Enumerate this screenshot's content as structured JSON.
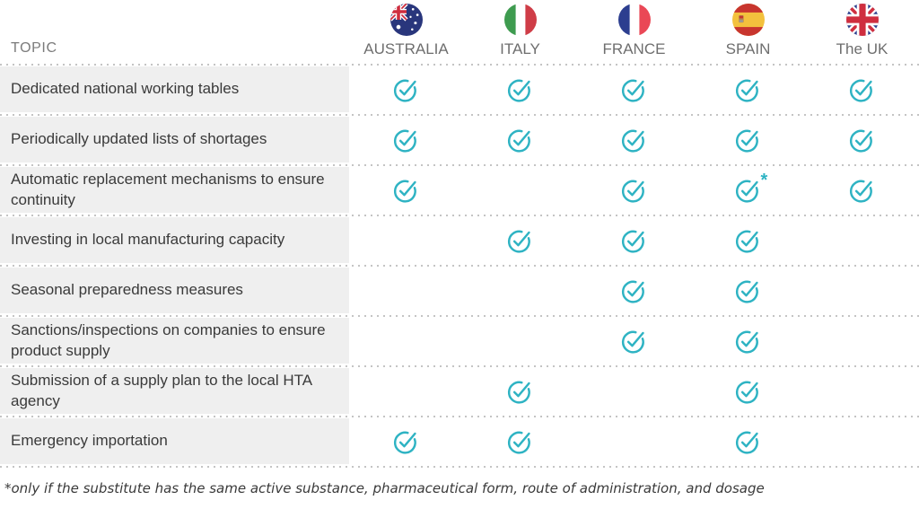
{
  "header": {
    "topic_label": "TOPIC",
    "countries": [
      {
        "name": "AUSTRALIA",
        "flag_icon": "australia-flag-icon"
      },
      {
        "name": "ITALY",
        "flag_icon": "italy-flag-icon"
      },
      {
        "name": "FRANCE",
        "flag_icon": "france-flag-icon"
      },
      {
        "name": "SPAIN",
        "flag_icon": "spain-flag-icon"
      },
      {
        "name": "The UK",
        "flag_icon": "uk-flag-icon"
      }
    ]
  },
  "rows": [
    {
      "topic": "Dedicated national working tables",
      "checks": [
        "yes",
        "yes",
        "yes",
        "yes",
        "yes"
      ]
    },
    {
      "topic": "Periodically updated lists of shortages",
      "checks": [
        "yes",
        "yes",
        "yes",
        "yes",
        "yes"
      ]
    },
    {
      "topic": "Automatic replacement mechanisms to ensure continuity",
      "checks": [
        "yes",
        "no",
        "yes",
        "yes*",
        "yes"
      ]
    },
    {
      "topic": "Investing in local manufacturing capacity",
      "checks": [
        "no",
        "yes",
        "yes",
        "yes",
        "no"
      ]
    },
    {
      "topic": "Seasonal preparedness measures",
      "checks": [
        "no",
        "no",
        "yes",
        "yes",
        "no"
      ]
    },
    {
      "topic": "Sanctions/inspections on companies to ensure product supply",
      "checks": [
        "no",
        "no",
        "yes",
        "yes",
        "no"
      ]
    },
    {
      "topic": "Submission of a supply plan to the local HTA agency",
      "checks": [
        "no",
        "yes",
        "no",
        "yes",
        "no"
      ]
    },
    {
      "topic": "Emergency importation",
      "checks": [
        "yes",
        "yes",
        "no",
        "yes",
        "no"
      ]
    }
  ],
  "footnote": "*only if the substitute has the same active substance, pharmaceutical form, route of administration, and dosage",
  "colors": {
    "check": "#2eb3c3",
    "topic_column_bg": "#efefef",
    "dotted_line": "#c4c4c4",
    "header_text": "#7b7b7b",
    "row_text": "#3a3a3a"
  },
  "chart_data": {
    "type": "table",
    "columns": [
      "TOPIC",
      "AUSTRALIA",
      "ITALY",
      "FRANCE",
      "SPAIN",
      "The UK"
    ],
    "rows": [
      [
        "Dedicated national working tables",
        "yes",
        "yes",
        "yes",
        "yes",
        "yes"
      ],
      [
        "Periodically updated lists of shortages",
        "yes",
        "yes",
        "yes",
        "yes",
        "yes"
      ],
      [
        "Automatic replacement mechanisms to ensure continuity",
        "yes",
        "no",
        "yes",
        "yes*",
        "yes"
      ],
      [
        "Investing in local manufacturing capacity",
        "no",
        "yes",
        "yes",
        "yes",
        "no"
      ],
      [
        "Seasonal preparedness measures",
        "no",
        "no",
        "yes",
        "yes",
        "no"
      ],
      [
        "Sanctions/inspections on companies to ensure product supply",
        "no",
        "no",
        "yes",
        "yes",
        "no"
      ],
      [
        "Submission of a supply plan to the local HTA agency",
        "no",
        "yes",
        "no",
        "yes",
        "no"
      ],
      [
        "Emergency importation",
        "yes",
        "yes",
        "no",
        "yes",
        "no"
      ]
    ],
    "legend": "check mark = measure present in country",
    "footnote": "*only if the substitute has the same active substance, pharmaceutical form, route of administration, and dosage"
  }
}
